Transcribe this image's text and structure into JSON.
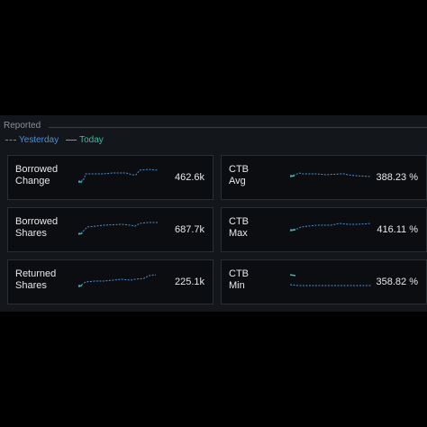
{
  "section": {
    "title": "Reported",
    "legend": {
      "yesterday": "Yesterday",
      "today": "Today"
    }
  },
  "colors": {
    "yesterday": "#4a90d9",
    "today": "#2fbfa6",
    "card_bg": "#0b0d10",
    "panel_bg": "#13161a"
  },
  "cards": [
    {
      "label_line1": "Borrowed",
      "label_line2": "Change",
      "value": "462.6k",
      "icon": "sparkline"
    },
    {
      "label_line1": "CTB",
      "label_line2": "Avg",
      "value": "388.23 %",
      "icon": "sparkline"
    },
    {
      "label_line1": "Borrowed",
      "label_line2": "Shares",
      "value": "687.7k",
      "icon": "sparkline"
    },
    {
      "label_line1": "CTB",
      "label_line2": "Max",
      "value": "416.11 %",
      "icon": "sparkline"
    },
    {
      "label_line1": "Returned",
      "label_line2": "Shares",
      "value": "225.1k",
      "icon": "sparkline"
    },
    {
      "label_line1": "CTB",
      "label_line2": "Min",
      "value": "358.82 %",
      "icon": "sparkline"
    }
  ]
}
